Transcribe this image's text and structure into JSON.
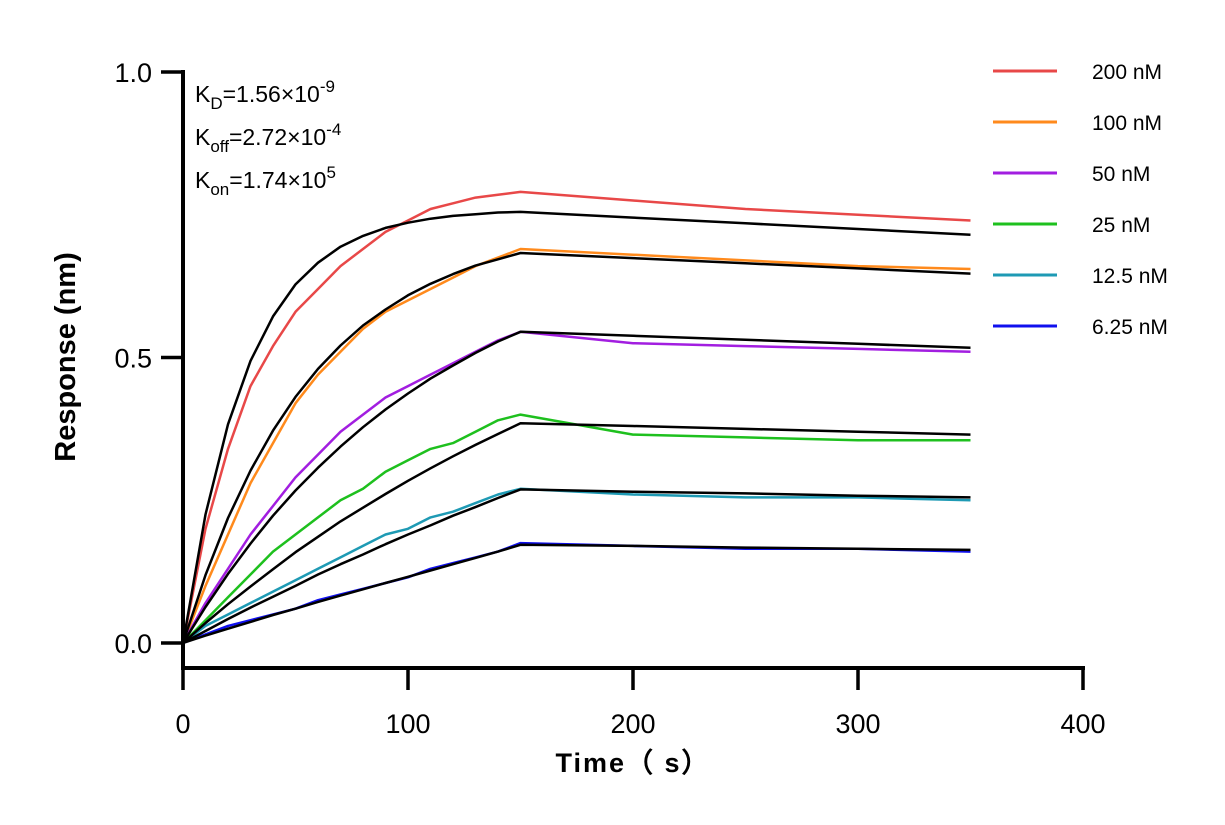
{
  "chart_data": {
    "type": "line",
    "xlabel": "Time（ s）",
    "ylabel": "Response (nm)",
    "xlim": [
      0,
      400
    ],
    "ylim": [
      -0.05,
      1.0
    ],
    "xticks": [
      0,
      100,
      200,
      300,
      400
    ],
    "xtick_labels": [
      "0",
      "100",
      "200",
      "300",
      "400"
    ],
    "yticks": [
      0,
      0.5,
      1.0
    ],
    "ytick_labels": [
      "0.0",
      "0.5",
      "1.0"
    ],
    "grid": false,
    "legend_placement": "top-right",
    "annotations": [
      {
        "main": "K",
        "sub": "D",
        "text": "=1.56×10",
        "sup": "-9"
      },
      {
        "main": "K",
        "sub": "off",
        "text": "=2.72×10",
        "sup": "-4"
      },
      {
        "main": "K",
        "sub": "on",
        "text": "=1.74×10",
        "sup": "5"
      }
    ],
    "x": [
      0,
      10,
      20,
      30,
      40,
      50,
      60,
      70,
      80,
      90,
      100,
      110,
      120,
      130,
      140,
      150,
      200,
      250,
      300,
      350
    ],
    "series": [
      {
        "name": "200 nM",
        "color": "#e84848",
        "values": [
          0,
          0.2,
          0.34,
          0.45,
          0.52,
          0.58,
          0.62,
          0.66,
          0.69,
          0.72,
          0.74,
          0.76,
          0.77,
          0.78,
          0.785,
          0.79,
          0.775,
          0.76,
          0.75,
          0.74
        ],
        "fit": [
          0,
          0.225,
          0.383,
          0.494,
          0.572,
          0.628,
          0.666,
          0.694,
          0.713,
          0.727,
          0.736,
          0.743,
          0.748,
          0.751,
          0.754,
          0.755,
          0.745,
          0.735,
          0.725,
          0.715
        ]
      },
      {
        "name": "100 nM",
        "color": "#ff8a1c",
        "values": [
          0,
          0.1,
          0.19,
          0.28,
          0.35,
          0.42,
          0.47,
          0.51,
          0.55,
          0.58,
          0.6,
          0.62,
          0.64,
          0.66,
          0.675,
          0.69,
          0.68,
          0.67,
          0.66,
          0.655
        ],
        "fit": [
          0,
          0.119,
          0.219,
          0.302,
          0.372,
          0.431,
          0.48,
          0.521,
          0.556,
          0.584,
          0.609,
          0.629,
          0.646,
          0.661,
          0.672,
          0.683,
          0.674,
          0.665,
          0.656,
          0.647
        ]
      },
      {
        "name": "50 nM",
        "color": "#a21ee0",
        "values": [
          0,
          0.07,
          0.13,
          0.19,
          0.24,
          0.29,
          0.33,
          0.37,
          0.4,
          0.43,
          0.45,
          0.47,
          0.49,
          0.51,
          0.53,
          0.545,
          0.525,
          0.52,
          0.515,
          0.51
        ],
        "fit": [
          0,
          0.063,
          0.121,
          0.174,
          0.223,
          0.267,
          0.307,
          0.344,
          0.378,
          0.409,
          0.437,
          0.463,
          0.486,
          0.508,
          0.528,
          0.545,
          0.538,
          0.531,
          0.524,
          0.517
        ]
      },
      {
        "name": "25 nM",
        "color": "#1ec01e",
        "values": [
          0,
          0.04,
          0.08,
          0.12,
          0.16,
          0.19,
          0.22,
          0.25,
          0.27,
          0.3,
          0.32,
          0.34,
          0.35,
          0.37,
          0.39,
          0.4,
          0.365,
          0.36,
          0.355,
          0.355
        ],
        "fit": [
          0,
          0.035,
          0.068,
          0.099,
          0.129,
          0.159,
          0.186,
          0.213,
          0.237,
          0.261,
          0.284,
          0.306,
          0.327,
          0.347,
          0.366,
          0.385,
          0.38,
          0.375,
          0.37,
          0.365
        ]
      },
      {
        "name": "12.5 nM",
        "color": "#1e9ab4",
        "values": [
          0,
          0.03,
          0.05,
          0.07,
          0.09,
          0.11,
          0.13,
          0.15,
          0.17,
          0.19,
          0.2,
          0.22,
          0.23,
          0.245,
          0.26,
          0.27,
          0.26,
          0.255,
          0.255,
          0.25
        ],
        "fit": [
          0,
          0.021,
          0.042,
          0.062,
          0.081,
          0.1,
          0.12,
          0.138,
          0.155,
          0.173,
          0.19,
          0.206,
          0.223,
          0.238,
          0.254,
          0.269,
          0.265,
          0.262,
          0.258,
          0.255
        ]
      },
      {
        "name": "6.25 nM",
        "color": "#1010ee",
        "values": [
          0,
          0.015,
          0.03,
          0.04,
          0.05,
          0.06,
          0.075,
          0.085,
          0.095,
          0.105,
          0.115,
          0.13,
          0.14,
          0.15,
          0.16,
          0.175,
          0.17,
          0.165,
          0.165,
          0.16
        ],
        "fit": [
          0,
          0.013,
          0.025,
          0.037,
          0.049,
          0.06,
          0.072,
          0.083,
          0.094,
          0.105,
          0.116,
          0.127,
          0.138,
          0.149,
          0.16,
          0.172,
          0.17,
          0.167,
          0.165,
          0.163
        ]
      }
    ]
  }
}
